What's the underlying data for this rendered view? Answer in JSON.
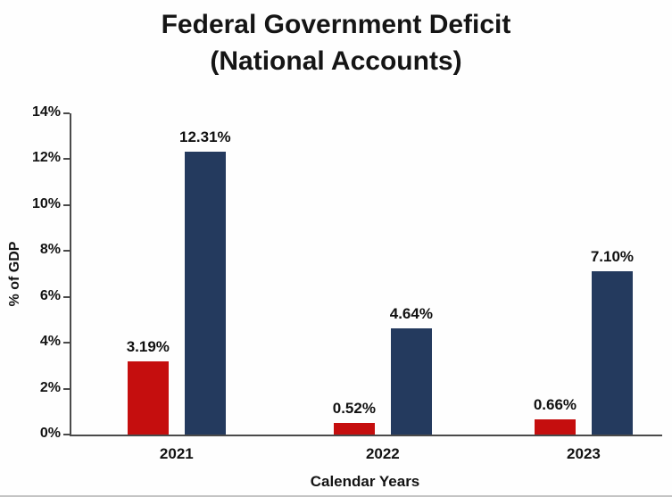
{
  "chart_data": {
    "type": "bar",
    "title_line1": "Federal Government Deficit",
    "title_line2": "(National Accounts)",
    "categories": [
      "2021",
      "2022",
      "2023"
    ],
    "series": [
      {
        "name": "deficit-red",
        "color": "#c50e0e",
        "values": [
          3.19,
          0.52,
          0.66
        ],
        "labels": [
          "3.19%",
          "0.52%",
          "0.66%"
        ]
      },
      {
        "name": "deficit-navy",
        "color": "#243a5e",
        "values": [
          12.31,
          4.64,
          7.1
        ],
        "labels": [
          "12.31%",
          "4.64%",
          "7.10%"
        ]
      }
    ],
    "xlabel": "Calendar Years",
    "ylabel": "% of GDP",
    "ylim": [
      0,
      14
    ],
    "ytick_step": 2,
    "ytick_labels": [
      "0%",
      "2%",
      "4%",
      "6%",
      "8%",
      "10%",
      "12%",
      "14%"
    ],
    "grid": false,
    "legend": "none"
  }
}
